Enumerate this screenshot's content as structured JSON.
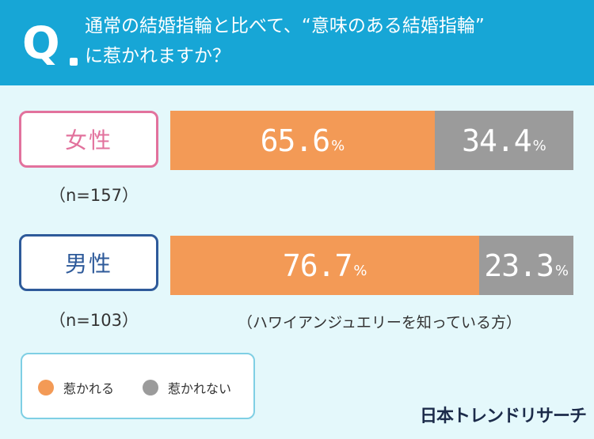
{
  "question": {
    "mark": "Q",
    "line1": "通常の結婚指輪と比べて、“意味のある結婚指輪”",
    "line2": "に惹かれますか？"
  },
  "groups": {
    "female": {
      "label": "女性",
      "n": "（n=157）"
    },
    "male": {
      "label": "男性",
      "n": "（n=103）"
    }
  },
  "chart_data": {
    "type": "bar",
    "orientation": "horizontal",
    "stacked": true,
    "categories": [
      "女性",
      "男性"
    ],
    "series": [
      {
        "name": "惹かれる",
        "values": [
          65.6,
          76.7
        ],
        "color": "#f39a56"
      },
      {
        "name": "惹かれない",
        "values": [
          34.4,
          23.3
        ],
        "color": "#9b9b9b"
      }
    ],
    "value_labels": {
      "female": {
        "yes": "65.6",
        "no": "34.4"
      },
      "male": {
        "yes": "76.7",
        "no": "23.3"
      }
    },
    "unit": "%",
    "xlim": [
      0,
      100
    ],
    "legend_position": "bottom-left"
  },
  "note": "（ハワイアンジュエリーを知っている方）",
  "legend": {
    "yes": "惹かれる",
    "no": "惹かれない"
  },
  "brand": "日本トレンドリサーチ",
  "colors": {
    "header": "#17a6d6",
    "background": "#e4f8fb",
    "female": "#e2729d",
    "male": "#2e5a9a"
  }
}
